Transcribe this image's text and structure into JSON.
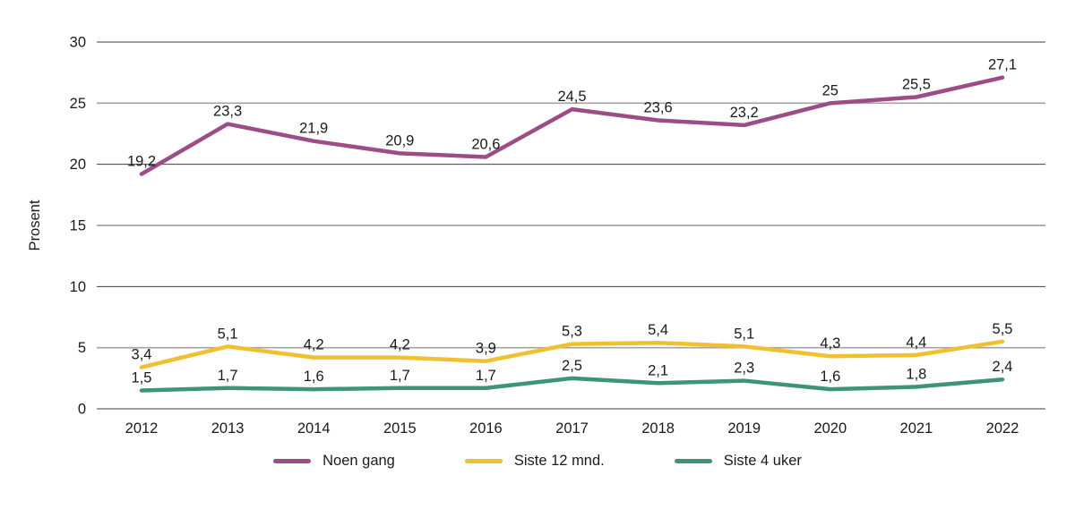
{
  "chart_data": {
    "type": "line",
    "title": "",
    "xlabel": "",
    "ylabel": "Prosent",
    "categories": [
      "2012",
      "2013",
      "2014",
      "2015",
      "2016",
      "2017",
      "2018",
      "2019",
      "2020",
      "2021",
      "2022"
    ],
    "y_ticks": [
      0,
      5,
      10,
      15,
      20,
      25,
      30
    ],
    "ylim": [
      0,
      30
    ],
    "grid": "horizontal",
    "legend_position": "bottom",
    "decimal_separator": ",",
    "series": [
      {
        "name": "Noen gang",
        "color": "#9c4d87",
        "values": [
          19.2,
          23.3,
          21.9,
          20.9,
          20.6,
          24.5,
          23.6,
          23.2,
          25,
          25.5,
          27.1
        ],
        "labels": [
          "19,2",
          "23,3",
          "21,9",
          "20,9",
          "20,6",
          "24,5",
          "23,6",
          "23,2",
          "25",
          "25,5",
          "27,1"
        ]
      },
      {
        "name": "Siste 12 mnd.",
        "color": "#f1c02f",
        "values": [
          3.4,
          5.1,
          4.2,
          4.2,
          3.9,
          5.3,
          5.4,
          5.1,
          4.3,
          4.4,
          5.5
        ],
        "labels": [
          "3,4",
          "5,1",
          "4,2",
          "4,2",
          "3,9",
          "5,3",
          "5,4",
          "5,1",
          "4,3",
          "4,4",
          "5,5"
        ]
      },
      {
        "name": "Siste 4 uker",
        "color": "#3e9478",
        "values": [
          1.5,
          1.7,
          1.6,
          1.7,
          1.7,
          2.5,
          2.1,
          2.3,
          1.6,
          1.8,
          2.4
        ],
        "labels": [
          "1,5",
          "1,7",
          "1,6",
          "1,7",
          "1,7",
          "2,5",
          "2,1",
          "2,3",
          "1,6",
          "1,8",
          "2,4"
        ]
      }
    ]
  }
}
